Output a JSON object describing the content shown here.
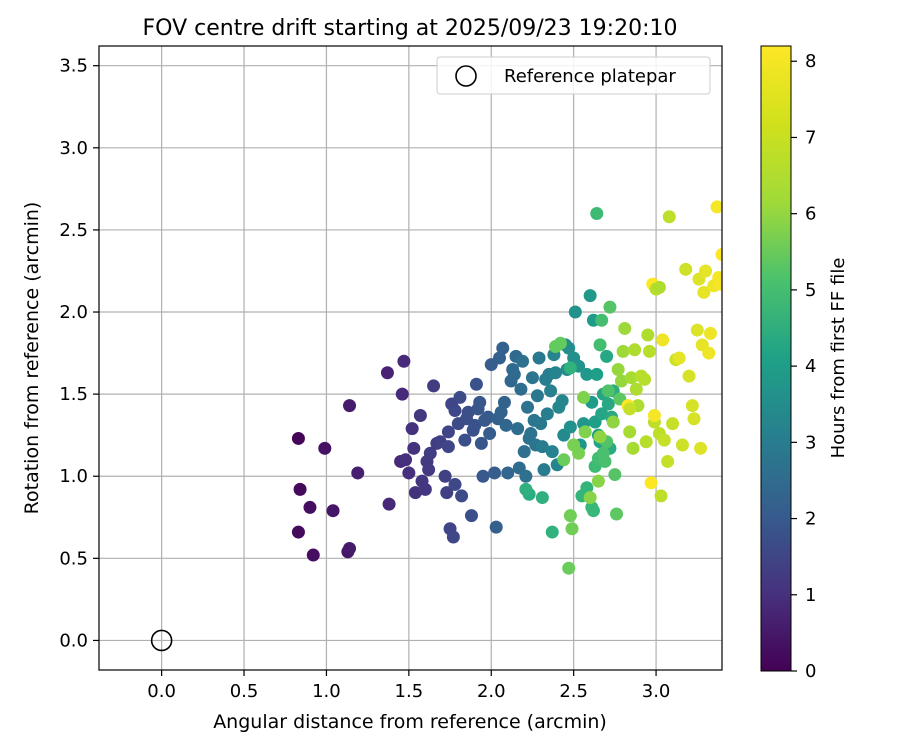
{
  "chart_data": {
    "type": "scatter",
    "title": "FOV centre drift starting at 2025/09/23 19:20:10",
    "xlabel": "Angular distance from reference (arcmin)",
    "ylabel": "Rotation from reference (arcmin)",
    "xlim": [
      -0.38,
      3.4
    ],
    "ylim": [
      -0.18,
      3.62
    ],
    "x_ticks": [
      "0.0",
      "0.5",
      "1.0",
      "1.5",
      "2.0",
      "2.5",
      "3.0"
    ],
    "y_ticks": [
      "0.0",
      "0.5",
      "1.0",
      "1.5",
      "2.0",
      "2.5",
      "3.0",
      "3.5"
    ],
    "grid": true,
    "legend": {
      "placement": "top-right",
      "label": "Reference platepar"
    },
    "reference_point": {
      "x": 0.0,
      "y": 0.0
    },
    "colorbar": {
      "label": "Hours from first FF file",
      "min": 0,
      "max": 8.2,
      "ticks": [
        "0",
        "1",
        "2",
        "3",
        "4",
        "5",
        "6",
        "7",
        "8"
      ]
    },
    "points": [
      [
        0.83,
        1.23,
        0.1
      ],
      [
        0.84,
        0.92,
        0.2
      ],
      [
        0.83,
        0.66,
        0.2
      ],
      [
        0.9,
        0.81,
        0.3
      ],
      [
        0.92,
        0.52,
        0.3
      ],
      [
        0.99,
        1.17,
        0.4
      ],
      [
        1.04,
        0.79,
        0.5
      ],
      [
        1.13,
        0.54,
        0.5
      ],
      [
        1.14,
        0.56,
        0.6
      ],
      [
        1.14,
        1.43,
        0.6
      ],
      [
        1.19,
        1.02,
        0.7
      ],
      [
        1.37,
        1.63,
        0.8
      ],
      [
        1.38,
        0.83,
        0.9
      ],
      [
        1.45,
        1.09,
        0.9
      ],
      [
        1.46,
        1.5,
        1.0
      ],
      [
        1.47,
        1.7,
        1.0
      ],
      [
        1.48,
        1.1,
        1.1
      ],
      [
        1.5,
        1.02,
        1.1
      ],
      [
        1.52,
        1.29,
        1.2
      ],
      [
        1.53,
        1.17,
        1.2
      ],
      [
        1.54,
        0.9,
        1.2
      ],
      [
        1.57,
        1.37,
        1.3
      ],
      [
        1.58,
        0.97,
        1.3
      ],
      [
        1.6,
        0.92,
        1.3
      ],
      [
        1.61,
        1.09,
        1.4
      ],
      [
        1.62,
        1.04,
        1.4
      ],
      [
        1.63,
        1.14,
        1.5
      ],
      [
        1.65,
        1.55,
        1.5
      ],
      [
        1.67,
        1.2,
        1.5
      ],
      [
        1.69,
        1.21,
        1.6
      ],
      [
        1.72,
        1.0,
        1.6
      ],
      [
        1.73,
        0.9,
        1.6
      ],
      [
        1.74,
        1.27,
        1.7
      ],
      [
        1.74,
        1.18,
        1.7
      ],
      [
        1.75,
        0.68,
        1.7
      ],
      [
        1.76,
        1.44,
        1.7
      ],
      [
        1.77,
        0.63,
        1.8
      ],
      [
        1.78,
        1.4,
        1.8
      ],
      [
        1.78,
        0.95,
        1.8
      ],
      [
        1.8,
        1.32,
        1.9
      ],
      [
        1.81,
        1.48,
        1.9
      ],
      [
        1.82,
        0.88,
        1.9
      ],
      [
        1.84,
        1.22,
        2.0
      ],
      [
        1.85,
        1.35,
        2.0
      ],
      [
        1.86,
        1.39,
        2.0
      ],
      [
        1.88,
        0.76,
        2.0
      ],
      [
        1.89,
        1.28,
        2.1
      ],
      [
        1.9,
        1.31,
        2.1
      ],
      [
        1.91,
        1.56,
        2.1
      ],
      [
        1.92,
        1.41,
        2.2
      ],
      [
        1.93,
        1.45,
        2.2
      ],
      [
        1.94,
        1.2,
        2.2
      ],
      [
        1.95,
        1.0,
        2.3
      ],
      [
        1.96,
        1.34,
        2.3
      ],
      [
        1.98,
        1.36,
        2.3
      ],
      [
        1.99,
        1.26,
        2.4
      ],
      [
        2.0,
        1.68,
        2.4
      ],
      [
        2.02,
        1.02,
        2.4
      ],
      [
        2.03,
        0.69,
        2.5
      ],
      [
        2.04,
        1.35,
        2.5
      ],
      [
        2.05,
        1.72,
        2.5
      ],
      [
        2.06,
        1.39,
        2.6
      ],
      [
        2.07,
        1.78,
        2.6
      ],
      [
        2.08,
        1.45,
        2.6
      ],
      [
        2.09,
        1.31,
        2.7
      ],
      [
        2.1,
        1.02,
        2.7
      ],
      [
        2.12,
        1.58,
        2.7
      ],
      [
        2.13,
        1.65,
        2.8
      ],
      [
        2.14,
        1.62,
        2.8
      ],
      [
        2.15,
        1.73,
        2.8
      ],
      [
        2.16,
        1.29,
        2.9
      ],
      [
        2.17,
        1.05,
        2.9
      ],
      [
        2.18,
        1.53,
        2.9
      ],
      [
        2.19,
        1.7,
        3.0
      ],
      [
        2.2,
        1.15,
        3.0
      ],
      [
        2.21,
        1.0,
        3.0
      ],
      [
        2.22,
        1.42,
        3.1
      ],
      [
        2.23,
        1.23,
        3.1
      ],
      [
        2.24,
        1.26,
        3.1
      ],
      [
        2.25,
        1.6,
        3.2
      ],
      [
        2.26,
        1.34,
        3.2
      ],
      [
        2.27,
        1.19,
        3.2
      ],
      [
        2.28,
        1.49,
        3.3
      ],
      [
        2.29,
        1.72,
        3.3
      ],
      [
        2.3,
        1.32,
        3.3
      ],
      [
        2.31,
        1.18,
        3.4
      ],
      [
        2.32,
        1.04,
        3.4
      ],
      [
        2.33,
        1.59,
        3.5
      ],
      [
        2.34,
        1.38,
        3.5
      ],
      [
        2.35,
        1.62,
        3.5
      ],
      [
        2.36,
        1.52,
        3.6
      ],
      [
        2.37,
        1.15,
        3.6
      ],
      [
        2.38,
        1.74,
        3.7
      ],
      [
        2.39,
        1.63,
        3.7
      ],
      [
        2.4,
        1.07,
        3.7
      ],
      [
        2.41,
        1.42,
        3.8
      ],
      [
        2.43,
        1.46,
        3.8
      ],
      [
        2.44,
        1.25,
        3.9
      ],
      [
        2.45,
        1.8,
        3.9
      ],
      [
        2.46,
        1.65,
        4.0
      ],
      [
        2.47,
        1.78,
        4.0
      ],
      [
        2.48,
        1.3,
        4.1
      ],
      [
        2.5,
        1.72,
        4.1
      ],
      [
        2.51,
        2.0,
        4.2
      ],
      [
        2.53,
        1.67,
        4.2
      ],
      [
        2.54,
        1.19,
        4.3
      ],
      [
        2.56,
        1.32,
        4.3
      ],
      [
        2.58,
        1.62,
        4.4
      ],
      [
        2.6,
        2.1,
        4.4
      ],
      [
        2.61,
        1.45,
        4.5
      ],
      [
        2.62,
        1.95,
        4.5
      ],
      [
        2.63,
        1.33,
        4.6
      ],
      [
        2.64,
        1.62,
        4.6
      ],
      [
        2.65,
        1.25,
        4.7
      ],
      [
        2.66,
        1.21,
        4.7
      ],
      [
        2.67,
        1.38,
        4.8
      ],
      [
        2.68,
        1.5,
        4.8
      ],
      [
        2.7,
        1.73,
        4.9
      ],
      [
        2.71,
        1.44,
        4.9
      ],
      [
        2.72,
        1.17,
        5.0
      ],
      [
        2.73,
        1.36,
        5.0
      ],
      [
        2.74,
        1.52,
        5.1
      ],
      [
        2.23,
        0.89,
        5.1
      ],
      [
        2.21,
        0.92,
        5.2
      ],
      [
        2.31,
        0.87,
        5.2
      ],
      [
        2.37,
        0.66,
        5.3
      ],
      [
        2.48,
        1.66,
        5.3
      ],
      [
        2.55,
        0.88,
        5.4
      ],
      [
        2.58,
        0.93,
        5.4
      ],
      [
        2.61,
        0.81,
        5.5
      ],
      [
        2.62,
        0.79,
        5.5
      ],
      [
        2.63,
        1.06,
        5.6
      ],
      [
        2.64,
        2.6,
        5.6
      ],
      [
        2.65,
        1.11,
        5.7
      ],
      [
        2.66,
        1.8,
        5.7
      ],
      [
        2.67,
        1.95,
        5.7
      ],
      [
        2.68,
        1.14,
        5.8
      ],
      [
        2.69,
        1.09,
        5.8
      ],
      [
        2.7,
        1.21,
        5.9
      ],
      [
        2.71,
        1.52,
        5.9
      ],
      [
        2.72,
        2.03,
        6.0
      ],
      [
        2.75,
        1.01,
        6.0
      ],
      [
        2.76,
        0.77,
        6.1
      ],
      [
        2.78,
        1.47,
        6.1
      ],
      [
        2.39,
        1.79,
        6.2
      ],
      [
        2.42,
        1.81,
        6.2
      ],
      [
        2.44,
        1.1,
        6.3
      ],
      [
        2.47,
        0.44,
        6.3
      ],
      [
        2.48,
        0.76,
        6.4
      ],
      [
        2.49,
        0.68,
        6.4
      ],
      [
        2.5,
        1.19,
        6.5
      ],
      [
        2.53,
        1.14,
        6.5
      ],
      [
        2.56,
        1.48,
        6.6
      ],
      [
        2.57,
        1.27,
        6.6
      ],
      [
        2.6,
        0.87,
        6.7
      ],
      [
        2.65,
        0.97,
        6.7
      ],
      [
        2.66,
        1.24,
        6.8
      ],
      [
        2.74,
        1.33,
        6.8
      ],
      [
        2.77,
        1.65,
        6.9
      ],
      [
        2.79,
        1.58,
        6.9
      ],
      [
        2.8,
        1.76,
        7.0
      ],
      [
        2.81,
        1.9,
        7.0
      ],
      [
        2.84,
        1.27,
        7.1
      ],
      [
        2.85,
        1.6,
        7.1
      ],
      [
        2.86,
        1.17,
        7.1
      ],
      [
        2.87,
        1.77,
        7.2
      ],
      [
        2.88,
        1.53,
        7.2
      ],
      [
        2.89,
        1.43,
        7.2
      ],
      [
        2.91,
        1.61,
        7.3
      ],
      [
        2.94,
        1.21,
        7.3
      ],
      [
        2.96,
        1.76,
        7.3
      ],
      [
        2.99,
        1.33,
        7.4
      ],
      [
        3.02,
        1.26,
        7.4
      ],
      [
        3.03,
        0.88,
        7.4
      ],
      [
        3.05,
        1.22,
        7.5
      ],
      [
        3.07,
        1.09,
        7.5
      ],
      [
        3.1,
        1.32,
        7.5
      ],
      [
        3.12,
        1.71,
        7.6
      ],
      [
        3.16,
        1.19,
        7.6
      ],
      [
        3.18,
        2.26,
        7.6
      ],
      [
        3.2,
        1.61,
        7.7
      ],
      [
        3.22,
        1.43,
        7.7
      ],
      [
        3.23,
        1.35,
        7.7
      ],
      [
        3.25,
        1.89,
        7.8
      ],
      [
        3.26,
        2.2,
        7.8
      ],
      [
        3.27,
        1.17,
        7.8
      ],
      [
        3.28,
        1.8,
        7.9
      ],
      [
        3.29,
        2.12,
        7.9
      ],
      [
        3.3,
        2.25,
        7.9
      ],
      [
        3.32,
        1.75,
        8.0
      ],
      [
        3.33,
        1.87,
        8.0
      ],
      [
        3.35,
        2.16,
        8.0
      ],
      [
        3.37,
        2.64,
        8.1
      ],
      [
        3.38,
        2.21,
        8.1
      ],
      [
        3.39,
        2.17,
        8.1
      ],
      [
        3.4,
        2.35,
        8.2
      ],
      [
        2.83,
        1.43,
        8.2
      ],
      [
        2.98,
        2.17,
        8.2
      ],
      [
        2.97,
        0.96,
        8.2
      ],
      [
        3.08,
        2.58,
        7.4
      ],
      [
        3.0,
        2.14,
        7.3
      ],
      [
        3.02,
        2.15,
        7.2
      ],
      [
        2.93,
        1.59,
        7.3
      ],
      [
        2.84,
        1.41,
        7.5
      ],
      [
        2.95,
        1.86,
        7.2
      ],
      [
        3.04,
        1.83,
        8.0
      ],
      [
        2.99,
        1.37,
        8.1
      ],
      [
        3.14,
        1.72,
        7.9
      ]
    ]
  }
}
